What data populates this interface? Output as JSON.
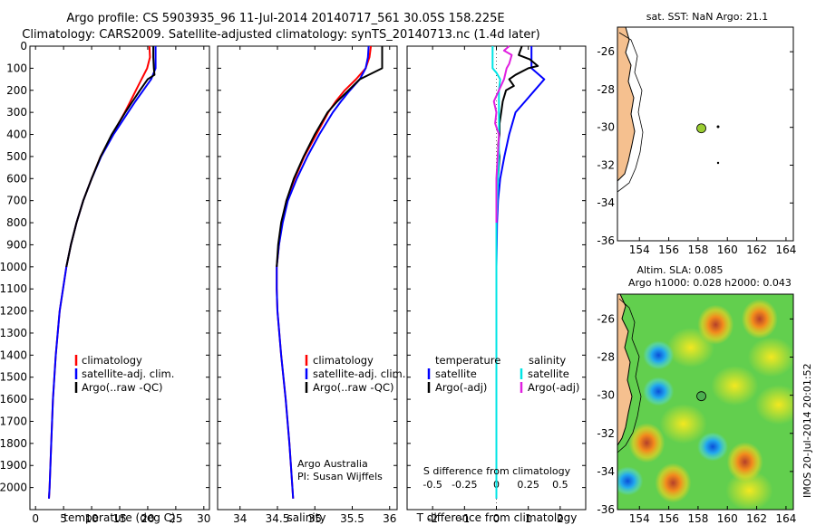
{
  "header": {
    "line1": "Argo profile: CS 5903935_96 11-Jul-2014 20140717_561 30.05S 158.225E",
    "line2": "Climatology: CARS2009. Satellite-adjusted climatology: synTS_20140713.nc (1.4d later)"
  },
  "colors": {
    "climatology": "#ff0000",
    "satellite": "#0000ff",
    "argo": "#000000",
    "sat_salinity": "#00e5e5",
    "argo_salinity_adj": "#e020e0",
    "land": "#f5c08f"
  },
  "credits": {
    "org": "Argo Australia",
    "pi": "PI: Susan Wijffels",
    "stamp": "IMOS 20-Jul-2014 20:01:52"
  },
  "chart_data": [
    {
      "type": "line",
      "name": "temperature",
      "xlabel": "temperature (deg C)",
      "ylabel": "",
      "xlim": [
        -1,
        31
      ],
      "ylim": [
        2100,
        0
      ],
      "xticks": [
        "0",
        "5",
        "10",
        "15",
        "20",
        "25",
        "30"
      ],
      "yticks": [
        "0",
        "100",
        "200",
        "300",
        "400",
        "500",
        "600",
        "700",
        "800",
        "900",
        "1000",
        "1100",
        "1200",
        "1300",
        "1400",
        "1500",
        "1600",
        "1700",
        "1800",
        "1900",
        "2000"
      ],
      "legend": [
        "climatology",
        "satellite-adj. clim.",
        "Argo(..raw -QC)"
      ],
      "series": [
        {
          "name": "climatology",
          "depth": [
            0,
            50,
            100,
            150,
            200,
            250,
            300,
            400,
            500,
            600,
            700,
            800,
            900,
            1000,
            1200,
            1400,
            1600,
            1800,
            2000,
            2050
          ],
          "values": [
            20.3,
            20.4,
            19.9,
            18.9,
            17.9,
            16.9,
            15.9,
            13.7,
            11.6,
            10.0,
            8.5,
            7.3,
            6.3,
            5.5,
            4.3,
            3.6,
            3.1,
            2.8,
            2.5,
            2.4
          ]
        },
        {
          "name": "satellite-adj. clim.",
          "depth": [
            0,
            50,
            100,
            150,
            200,
            250,
            300,
            400,
            500,
            600,
            700,
            800,
            900,
            1000,
            1200,
            1400,
            1600,
            1800,
            2000,
            2050
          ],
          "values": [
            21.4,
            21.4,
            21.4,
            20.6,
            19.2,
            17.8,
            16.5,
            13.9,
            11.7,
            10.0,
            8.5,
            7.3,
            6.3,
            5.5,
            4.3,
            3.6,
            3.1,
            2.8,
            2.5,
            2.4
          ]
        },
        {
          "name": "Argo(..raw -QC)",
          "depth": [
            0,
            50,
            100,
            130,
            150,
            200,
            250,
            300,
            400,
            500,
            600,
            700,
            800,
            900,
            1000
          ],
          "values": [
            21.0,
            21.0,
            21.1,
            21.2,
            20.0,
            18.6,
            17.3,
            16.0,
            13.6,
            11.6,
            10.0,
            8.5,
            7.3,
            6.3,
            5.5
          ]
        }
      ]
    },
    {
      "type": "line",
      "name": "salinity",
      "xlabel": "salinity",
      "xlim": [
        33.7,
        36.1
      ],
      "ylim": [
        2100,
        0
      ],
      "xticks": [
        "34",
        "34.5",
        "35",
        "35.5",
        "36"
      ],
      "legend": [
        "climatology",
        "satellite-adj. clim.",
        "Argo(..raw -QC)"
      ],
      "series": [
        {
          "name": "climatology",
          "depth": [
            0,
            50,
            100,
            150,
            200,
            250,
            300,
            400,
            500,
            600,
            700,
            800,
            900,
            1000,
            1100,
            1200,
            1400,
            1600,
            1800,
            2000,
            2050
          ],
          "values": [
            35.75,
            35.73,
            35.68,
            35.55,
            35.4,
            35.28,
            35.18,
            35.02,
            34.86,
            34.73,
            34.62,
            34.56,
            34.52,
            34.49,
            34.49,
            34.5,
            34.55,
            34.61,
            34.66,
            34.7,
            34.71
          ]
        },
        {
          "name": "satellite-adj. clim.",
          "depth": [
            0,
            50,
            100,
            150,
            200,
            250,
            300,
            400,
            500,
            600,
            700,
            800,
            900,
            1000,
            1100,
            1200,
            1400,
            1600,
            1800,
            2000,
            2050
          ],
          "values": [
            35.72,
            35.71,
            35.68,
            35.6,
            35.47,
            35.35,
            35.24,
            35.06,
            34.9,
            34.76,
            34.64,
            34.57,
            34.52,
            34.49,
            34.49,
            34.5,
            34.55,
            34.61,
            34.66,
            34.7,
            34.71
          ]
        },
        {
          "name": "Argo(..raw -QC)",
          "depth": [
            0,
            50,
            100,
            150,
            200,
            250,
            300,
            400,
            500,
            600,
            700,
            800,
            900,
            1000
          ],
          "values": [
            35.9,
            35.9,
            35.9,
            35.6,
            35.45,
            35.3,
            35.17,
            35.0,
            34.85,
            34.72,
            34.62,
            34.55,
            34.51,
            34.49
          ]
        }
      ]
    },
    {
      "type": "line",
      "name": "difference",
      "xlabel": "T difference from climatology",
      "xlabel_top": "S difference from climatology",
      "xlim": [
        -2.8,
        2.8
      ],
      "ylim": [
        2100,
        0
      ],
      "xticks": [
        "-2",
        "-1",
        "0",
        "1",
        "2"
      ],
      "xticks_salinity": [
        "-0.5",
        "-0.25",
        "0",
        "0.25",
        "0.5"
      ],
      "legend_headers": [
        "temperature",
        "salinity"
      ],
      "legend": [
        "satellite",
        "Argo(-adj)",
        "satellite",
        "Argo(-adj)"
      ],
      "series": [
        {
          "name": "T satellite",
          "depth": [
            0,
            100,
            150,
            200,
            250,
            300,
            350,
            400,
            500,
            600,
            700,
            800,
            900,
            1000,
            1200,
            1500,
            1800,
            2050
          ],
          "values": [
            1.1,
            1.1,
            1.5,
            1.2,
            0.9,
            0.6,
            0.5,
            0.4,
            0.25,
            0.12,
            0.05,
            0.02,
            0.01,
            0.0,
            0.0,
            0.0,
            0.0,
            0.0
          ]
        },
        {
          "name": "T Argo(-adj)",
          "depth": [
            0,
            40,
            60,
            90,
            100,
            130,
            150,
            180,
            200,
            250,
            300,
            350,
            400,
            450,
            500,
            600,
            700,
            800
          ],
          "values": [
            0.8,
            0.7,
            1.05,
            1.3,
            1.0,
            0.6,
            0.4,
            0.55,
            0.3,
            0.2,
            0.15,
            0.1,
            0.1,
            0.05,
            0.1,
            0.05,
            0.0,
            0.0
          ]
        },
        {
          "name": "S satellite",
          "depth": [
            0,
            100,
            120,
            150,
            200,
            300,
            500,
            800,
            1200,
            1600,
            2050
          ],
          "values": [
            -0.03,
            -0.03,
            0.0,
            0.03,
            0.02,
            0.02,
            0.02,
            0.0,
            0.0,
            0.0,
            0.0
          ]
        },
        {
          "name": "S Argo(-adj)",
          "depth": [
            0,
            20,
            40,
            80,
            100,
            150,
            200,
            250,
            300,
            350,
            400,
            500,
            600,
            700,
            800
          ],
          "values": [
            0.1,
            0.06,
            0.12,
            0.1,
            0.08,
            0.06,
            0.02,
            -0.02,
            0.0,
            -0.01,
            0.02,
            0.01,
            0.0,
            0.0,
            0.0
          ]
        }
      ]
    },
    {
      "type": "scatter",
      "name": "sst-map",
      "title": "sat. SST: NaN Argo: 21.1",
      "xlim": [
        152.5,
        164.5
      ],
      "ylim": [
        -36,
        -24.7
      ],
      "xticks": [
        "154",
        "156",
        "158",
        "160",
        "162",
        "164"
      ],
      "yticks": [
        "-26",
        "-28",
        "-30",
        "-32",
        "-34",
        "-36"
      ],
      "points": [
        {
          "name": "Argo float",
          "lon": 158.225,
          "lat": -30.05
        }
      ]
    },
    {
      "type": "heatmap",
      "name": "sla-map",
      "title": "Altim. SLA: 0.085",
      "subtitle": "Argo h1000: 0.028 h2000: 0.043",
      "xlim": [
        152.5,
        164.5
      ],
      "ylim": [
        -36,
        -24.7
      ],
      "xticks": [
        "154",
        "156",
        "158",
        "160",
        "162",
        "164"
      ],
      "yticks": [
        "-26",
        "-28",
        "-30",
        "-32",
        "-34",
        "-36"
      ],
      "features": [
        {
          "kind": "low",
          "lon": 155.3,
          "lat": -27.9
        },
        {
          "kind": "low",
          "lon": 155.3,
          "lat": -29.8
        },
        {
          "kind": "low",
          "lon": 159.0,
          "lat": -32.7
        },
        {
          "kind": "low",
          "lon": 153.2,
          "lat": -34.5
        },
        {
          "kind": "high",
          "lon": 162.2,
          "lat": -26.0
        },
        {
          "kind": "high",
          "lon": 159.2,
          "lat": -26.3
        },
        {
          "kind": "high",
          "lon": 156.3,
          "lat": -34.6
        },
        {
          "kind": "high",
          "lon": 154.5,
          "lat": -32.5
        },
        {
          "kind": "high",
          "lon": 161.2,
          "lat": -33.5
        }
      ],
      "points": [
        {
          "name": "Argo float",
          "lon": 158.225,
          "lat": -30.05
        }
      ]
    }
  ]
}
